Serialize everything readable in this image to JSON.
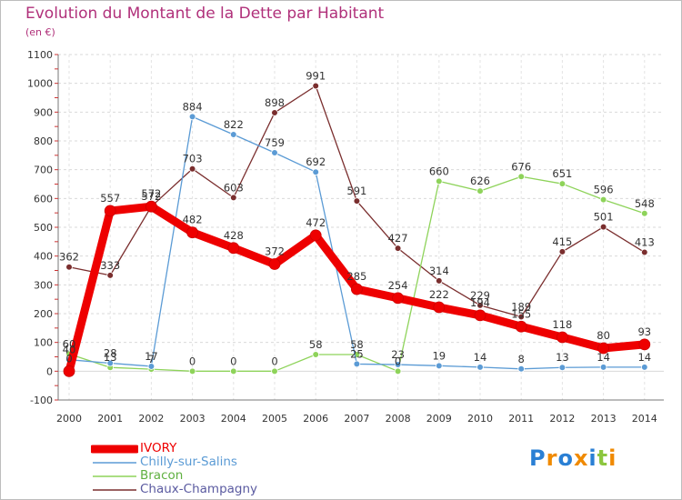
{
  "title": "Evolution du Montant de la Dette par Habitant",
  "subtitle": "(en €)",
  "logo": {
    "text": "Proxiti",
    "colors": [
      "#2a7fd4",
      "#f08a00",
      "#2a7fd4",
      "#f08a00",
      "#2a7fd4",
      "#8cc63f",
      "#f08a00"
    ]
  },
  "chart_data": {
    "type": "line",
    "categories": [
      "2000",
      "2001",
      "2002",
      "2003",
      "2004",
      "2005",
      "2006",
      "2007",
      "2008",
      "2009",
      "2010",
      "2011",
      "2012",
      "2013",
      "2014"
    ],
    "ylim": [
      -100,
      1100
    ],
    "yticks": [
      "-100",
      "0",
      "100",
      "200",
      "300",
      "400",
      "500",
      "600",
      "700",
      "800",
      "900",
      "1000",
      "1100"
    ],
    "grid": true,
    "legend_position": "bottom-left",
    "series": [
      {
        "name": "Chaux-Champagny",
        "color": "#7a2e2e",
        "values": [
          362,
          333,
          572,
          703,
          603,
          898,
          991,
          591,
          427,
          314,
          229,
          189,
          415,
          501,
          413
        ],
        "labels": [
          "362",
          "333",
          "572",
          "703",
          "603",
          "898",
          "991",
          "591",
          "427",
          "314",
          "229",
          "189",
          "415",
          "501",
          "413"
        ]
      },
      {
        "name": "Bracon",
        "color": "#8ed35a",
        "values": [
          60,
          13,
          7,
          0,
          0,
          0,
          58,
          58,
          0,
          660,
          626,
          676,
          651,
          596,
          548
        ],
        "labels": [
          "60",
          "13",
          "7",
          "0",
          "0",
          "0",
          "58",
          "58",
          "0",
          "660",
          "626",
          "676",
          "651",
          "596",
          "548"
        ]
      },
      {
        "name": "Chilly-sur-Salins",
        "color": "#5b9bd5",
        "values": [
          40,
          28,
          17,
          884,
          822,
          759,
          692,
          25,
          23,
          19,
          14,
          8,
          13,
          14,
          14
        ],
        "labels": [
          "40",
          "28",
          "17",
          "884",
          "822",
          "759",
          "692",
          "25",
          "23",
          "19",
          "14",
          "8",
          "13",
          "14",
          "14"
        ]
      },
      {
        "name": "IVORY",
        "color": "#ee0000",
        "values": [
          0,
          557,
          572,
          482,
          428,
          372,
          472,
          285,
          254,
          222,
          194,
          155,
          118,
          80,
          93
        ],
        "labels": [
          "0",
          "557",
          "572",
          "482",
          "428",
          "372",
          "472",
          "285",
          "254",
          "222",
          "194",
          "155",
          "118",
          "80",
          "93"
        ]
      }
    ],
    "legend": [
      {
        "name": "IVORY",
        "color": "#ee0000",
        "thick": true
      },
      {
        "name": "Chilly-sur-Salins",
        "color": "#5b9bd5",
        "thick": false
      },
      {
        "name": "Bracon",
        "color": "#8ed35a",
        "thick": false
      },
      {
        "name": "Chaux-Champagny",
        "color": "#7a2e2e",
        "thick": false
      }
    ]
  }
}
